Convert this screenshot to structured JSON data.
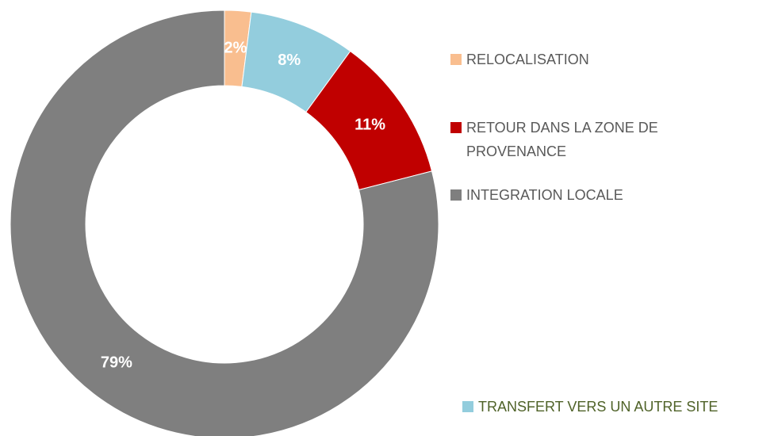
{
  "chart_data": {
    "type": "donut",
    "categories": [
      "RELOCALISATION",
      "TRANSFERT VERS UN AUTRE SITE",
      "RETOUR DANS LA ZONE DE PROVENANCE",
      "INTEGRATION LOCALE"
    ],
    "values": [
      2,
      8,
      11,
      79
    ],
    "value_labels": [
      "2%",
      "8%",
      "11%",
      "79%"
    ],
    "colors": [
      "#f9be8f",
      "#93cddd",
      "#c00000",
      "#7f7f7f"
    ]
  }
}
